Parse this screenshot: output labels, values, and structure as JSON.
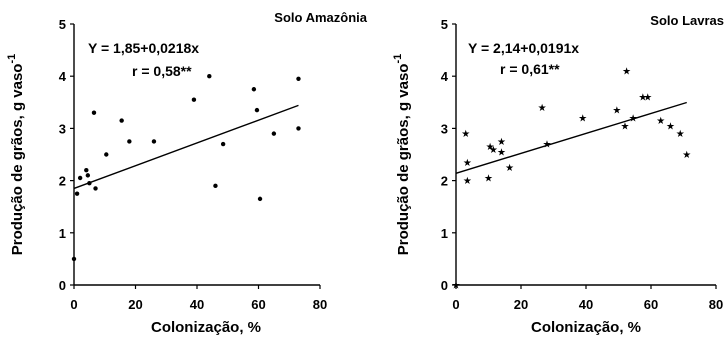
{
  "chart_data": [
    {
      "type": "scatter",
      "panel_label": "Solo Amazônia",
      "xlabel": "Colonização, %",
      "ylabel": "Produção de grãos, g vaso",
      "ylabel_sup": "-1",
      "xlim": [
        0,
        80
      ],
      "ylim": [
        0,
        5
      ],
      "xticks": [
        0,
        20,
        40,
        60,
        80
      ],
      "yticks": [
        0,
        1,
        2,
        3,
        4,
        5
      ],
      "marker": "dot",
      "equation": "Y = 1,85+0,0218x",
      "r_text": "r = 0,58**",
      "fit": {
        "intercept": 1.85,
        "slope": 0.0218,
        "x_range": [
          0,
          73
        ]
      },
      "grid": false,
      "points": [
        {
          "x": 0,
          "y": 0.5
        },
        {
          "x": 1,
          "y": 1.75
        },
        {
          "x": 2,
          "y": 2.05
        },
        {
          "x": 4,
          "y": 2.2
        },
        {
          "x": 4.5,
          "y": 2.1
        },
        {
          "x": 5,
          "y": 1.95
        },
        {
          "x": 6.5,
          "y": 3.3
        },
        {
          "x": 7,
          "y": 1.85
        },
        {
          "x": 10.5,
          "y": 2.5
        },
        {
          "x": 15.5,
          "y": 3.15
        },
        {
          "x": 18,
          "y": 2.75
        },
        {
          "x": 26,
          "y": 2.75
        },
        {
          "x": 39,
          "y": 3.55
        },
        {
          "x": 44,
          "y": 4.0
        },
        {
          "x": 46,
          "y": 1.9
        },
        {
          "x": 48.5,
          "y": 2.7
        },
        {
          "x": 58.5,
          "y": 3.75
        },
        {
          "x": 59.5,
          "y": 3.35
        },
        {
          "x": 60.5,
          "y": 1.65
        },
        {
          "x": 65,
          "y": 2.9
        },
        {
          "x": 73,
          "y": 3.95
        },
        {
          "x": 73,
          "y": 3.0
        }
      ]
    },
    {
      "type": "scatter",
      "panel_label": "Solo Lavras",
      "xlabel": "Colonização, %",
      "ylabel": "Produção de grãos, g vaso",
      "ylabel_sup": "-1",
      "xlim": [
        0,
        80
      ],
      "ylim": [
        0,
        5
      ],
      "xticks": [
        0,
        20,
        40,
        60,
        80
      ],
      "yticks": [
        0,
        1,
        2,
        3,
        4,
        5
      ],
      "marker": "star",
      "equation": "Y = 2,14+0,0191x",
      "r_text": "r = 0,61**",
      "fit": {
        "intercept": 2.14,
        "slope": 0.0191,
        "x_range": [
          0,
          71
        ]
      },
      "grid": false,
      "points": [
        {
          "x": 0,
          "y": 0
        },
        {
          "x": 3,
          "y": 2.9
        },
        {
          "x": 3.5,
          "y": 2.35
        },
        {
          "x": 3.5,
          "y": 2.0
        },
        {
          "x": 10,
          "y": 2.05
        },
        {
          "x": 10.5,
          "y": 2.65
        },
        {
          "x": 11.5,
          "y": 2.6
        },
        {
          "x": 14,
          "y": 2.75
        },
        {
          "x": 14,
          "y": 2.55
        },
        {
          "x": 16.5,
          "y": 2.25
        },
        {
          "x": 26.5,
          "y": 3.4
        },
        {
          "x": 28,
          "y": 2.7
        },
        {
          "x": 39,
          "y": 3.2
        },
        {
          "x": 49.5,
          "y": 3.35
        },
        {
          "x": 52,
          "y": 3.05
        },
        {
          "x": 52.5,
          "y": 4.1
        },
        {
          "x": 54.5,
          "y": 3.2
        },
        {
          "x": 57.5,
          "y": 3.6
        },
        {
          "x": 59,
          "y": 3.6
        },
        {
          "x": 63,
          "y": 3.15
        },
        {
          "x": 66,
          "y": 3.05
        },
        {
          "x": 69,
          "y": 2.9
        },
        {
          "x": 71,
          "y": 2.5
        }
      ]
    }
  ]
}
